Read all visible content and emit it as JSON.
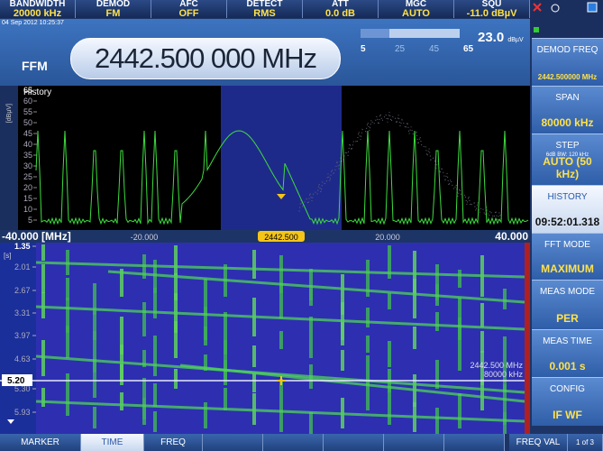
{
  "top_bar": [
    {
      "label": "BANDWIDTH",
      "value": "20000 kHz"
    },
    {
      "label": "DEMOD",
      "value": "FM"
    },
    {
      "label": "AFC",
      "value": "OFF"
    },
    {
      "label": "DETECT",
      "value": "RMS"
    },
    {
      "label": "ATT",
      "value": "0.0 dB"
    },
    {
      "label": "MGC",
      "value": "AUTO"
    },
    {
      "label": "SQU",
      "value": "-11.0 dBµV"
    }
  ],
  "header": {
    "date": "04 Sep 2012 10:25:37",
    "mode": "FFM",
    "frequency": "2442.500 000 MHz",
    "level": "23.0",
    "level_unit": "dBµV",
    "level_scale": [
      "5",
      "25",
      "45",
      "65"
    ]
  },
  "side_keys": [
    {
      "label": "DEMOD FREQ",
      "value": "2442.500000 MHz"
    },
    {
      "label": "SPAN",
      "value": "80000 kHz"
    },
    {
      "label": "STEP",
      "note": "6dB BW: 120 kHz",
      "value": "AUTO (50 kHz)"
    },
    {
      "label": "HISTORY",
      "value": "09:52:01.318"
    },
    {
      "label": "FFT MODE",
      "value": "MAXIMUM"
    },
    {
      "label": "MEAS MODE",
      "value": "PER"
    },
    {
      "label": "MEAS TIME",
      "value": "0.001 s"
    },
    {
      "label": "CONFIG",
      "value": "IF WF"
    }
  ],
  "spectrum": {
    "title": "History",
    "y_unit": "[dBµV]",
    "y_ticks": [
      "65",
      "60",
      "55",
      "50",
      "45",
      "40",
      "35",
      "30",
      "25",
      "20",
      "15",
      "10",
      "5"
    ],
    "x_labels": [
      "-40.000 [MHz]",
      "-20.000",
      "2442.500",
      "20.000",
      "40.000"
    ]
  },
  "waterfall": {
    "y_unit": "[s]",
    "y_ticks": [
      "1.35",
      "2.01",
      "2.67",
      "3.31",
      "3.97",
      "4.63",
      "5.30",
      "5.93"
    ],
    "marker": "5.20",
    "annotation": [
      "2442.500 MHz",
      "80000 kHz"
    ]
  },
  "softkeys": [
    "MARKER",
    "TIME",
    "FREQ",
    "FREQ VAL",
    "1 of 3"
  ]
}
